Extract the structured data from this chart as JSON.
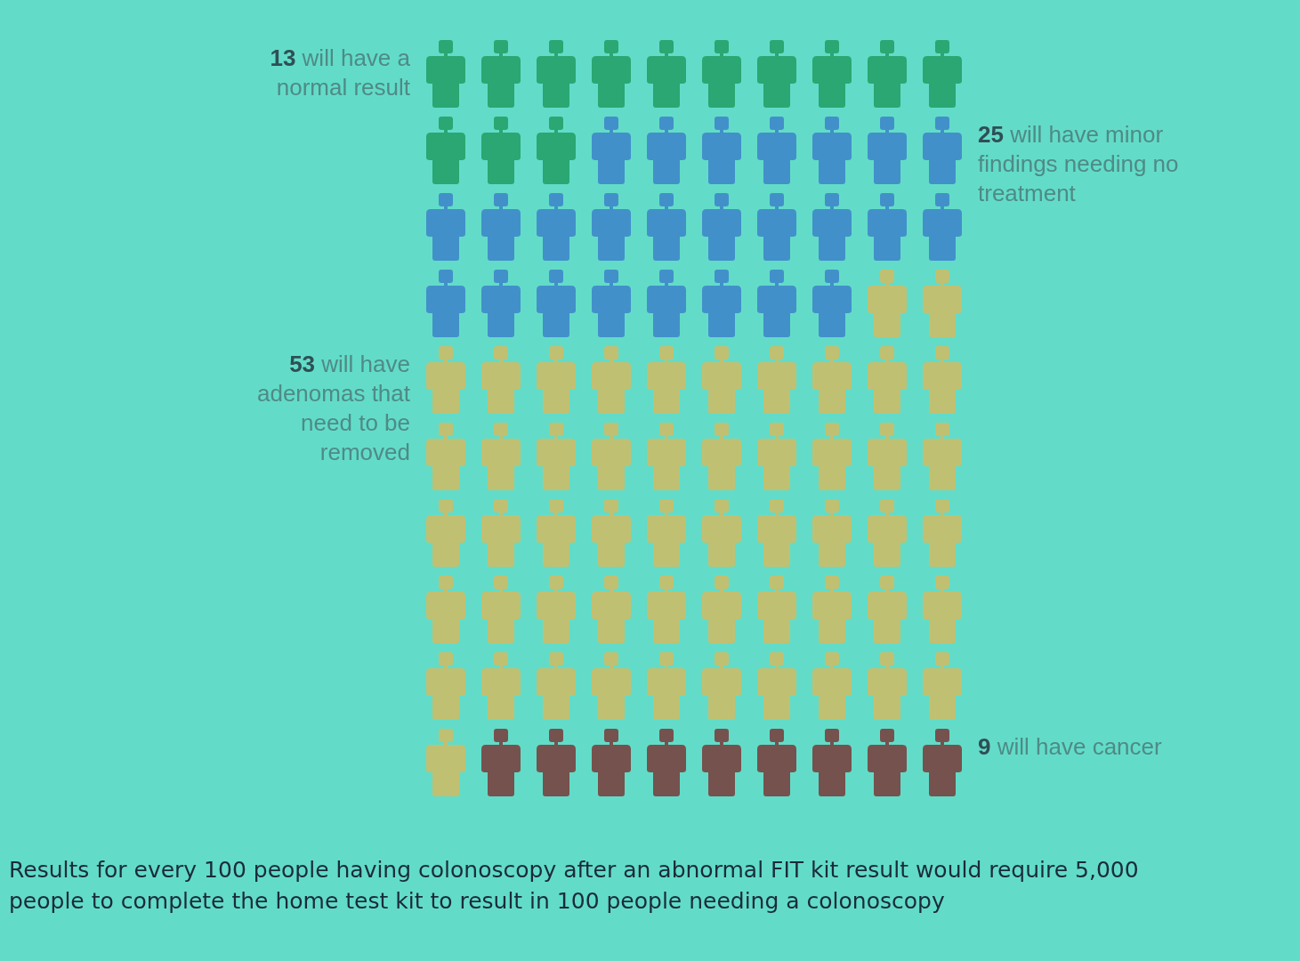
{
  "chart_data": {
    "type": "other",
    "categories": [
      "will have a normal result",
      "will have minor findings needing no treatment",
      "will have adenomas that need to be removed",
      "will have cancer"
    ],
    "values": [
      13,
      25,
      53,
      9
    ],
    "colors": [
      "#1d9a5c",
      "#3b7dc9",
      "#d8b95c",
      "#7b2f2f"
    ],
    "data_labels": true,
    "annotations": [
      "Results for every 100 people having colonoscopy after an abnormal FIT kit result would require 5,000 people to complete the home test kit to result in 100 people needing a colonoscopy"
    ]
  }
}
